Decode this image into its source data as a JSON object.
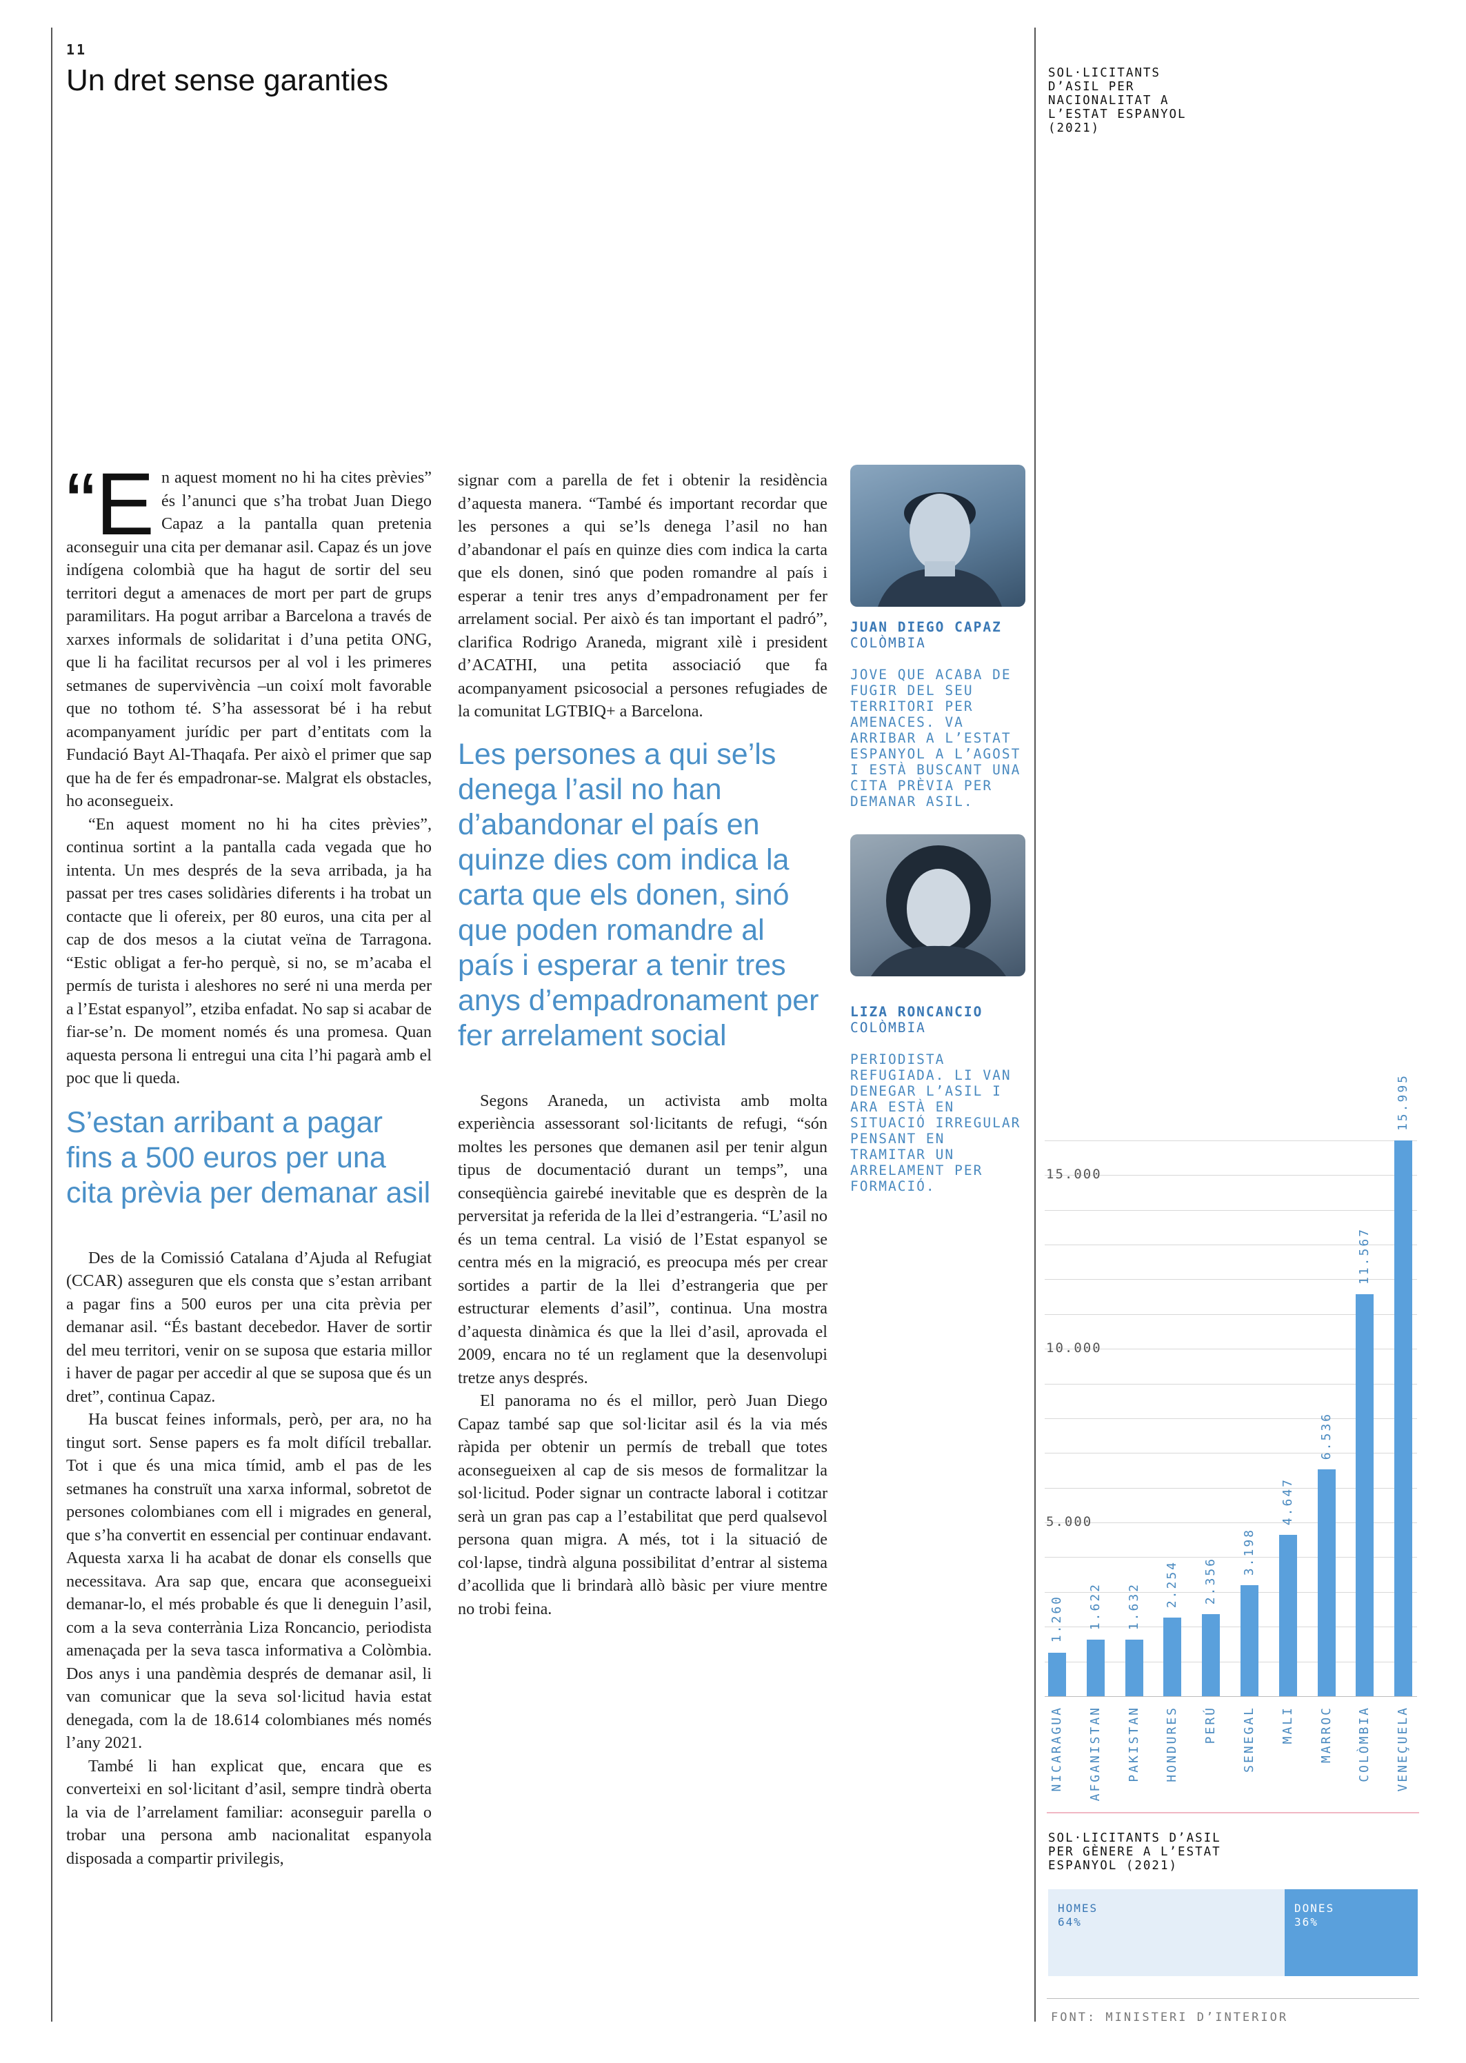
{
  "page": {
    "number": "11",
    "title": "Un dret sense garanties"
  },
  "column1": {
    "drop_quote": "“",
    "drop_letter": "E",
    "p1_rest": "n aquest moment no hi ha cites prèvies” és l’anunci que s’ha trobat Juan Diego Capaz a la pantalla quan pretenia aconseguir una cita per demanar asil. Capaz és un jove indígena colombià que ha hagut de sortir del seu territori degut a amenaces de mort per part de grups paramilitars. Ha pogut arribar a Barcelona a través de xarxes informals de solidaritat i d’una petita ONG, que li ha facilitat recursos per al vol i les primeres setmanes de supervivència –un coixí molt favorable que no tothom té. S’ha assessorat bé i ha rebut acompanyament jurídic per part d’entitats com la Fundació Bayt Al-Thaqafa. Per això el primer que sap que ha de fer és empadronar-se. Malgrat els obstacles, ho aconsegueix.",
    "p2": "“En aquest moment no hi ha cites prèvies”, continua sortint a la pantalla cada vegada que ho intenta. Un mes després de la seva arribada, ja ha passat per tres cases solidàries diferents i ha trobat un contacte que li ofereix, per 80 euros, una cita per al cap de dos mesos a la ciutat veïna de Tarragona. “Estic obligat a fer-ho perquè, si no, se m’acaba el permís de turista i aleshores no seré ni una merda per a l’Estat espanyol”, etziba enfadat. No sap si acabar de fiar-se’n. De moment només és una promesa. Quan aquesta persona li entregui una cita l’hi pagarà amb el poc que li queda.",
    "pull_quote": "S’estan arribant a pagar fins a 500 euros per una cita prèvia per demanar asil",
    "p3": "Des de la Comissió Catalana d’Ajuda al Refugiat (CCAR) asseguren que els consta que s’estan arribant a pagar fins a 500 euros per una cita prèvia per demanar asil. “És bastant decebedor. Haver de sortir del meu territori, venir on se suposa que estaria millor i haver de pagar per accedir al que se suposa que és un dret”, continua Capaz.",
    "p4": "Ha buscat feines informals, però, per ara, no ha tingut sort. Sense papers es fa molt difícil treballar. Tot i que és una mica tímid, amb el pas de les setmanes ha construït una xarxa informal, sobretot de persones colombianes com ell i migrades en general, que s’ha convertit en essencial per continuar endavant. Aquesta xarxa li ha acabat de donar els consells que necessitava. Ara sap que, encara que aconsegueixi demanar-lo, el més probable és que li deneguin l’asil, com a la seva conterrània Liza Roncancio, periodista amenaçada per la seva tasca informativa a Colòmbia. Dos anys i una pandèmia després de demanar asil, li van comunicar que la seva sol·licitud havia estat denegada, com la de 18.614 colombianes més només l’any 2021.",
    "p5": "També li han explicat que, encara que es converteixi en sol·licitant d’asil, sempre tindrà oberta la via de l’arrelament familiar: aconseguir parella o trobar una persona amb nacionalitat espanyola disposada a compartir privilegis,"
  },
  "column2": {
    "p1": "signar com a parella de fet i obtenir la residència d’aquesta manera. “També és important recordar que les persones a qui se’ls denega l’asil no han d’abandonar el país en quinze dies com indica la carta que els donen, sinó que poden romandre al país i esperar a tenir tres anys d’empadronament per fer arrelament social. Per això és tan important el padró”, clarifica Rodrigo Araneda, migrant xilè i president d’ACATHI, una petita associació que fa acompanyament psicosocial a persones refugiades de la comunitat LGTBIQ+ a Barcelona.",
    "pull_quote": "Les persones a qui se’ls denega l’asil no han d’abandonar el país en quinze dies com indica la carta que els donen, sinó que poden romandre al país i esperar a tenir tres anys d’empadronament per fer arrelament social",
    "p2": "Segons Araneda, un activista amb molta experiència assessorant sol·licitants de refugi, “són moltes les persones que demanen asil per tenir algun tipus de documentació durant un temps”, una conseqüència gairebé inevitable que es desprèn de la perversitat ja referida de la llei d’estrangeria. “L’asil no és un tema central. La visió de l’Estat espanyol se centra més en la migració, es preocupa més per crear sortides a partir de la llei d’estrangeria que per estructurar elements d’asil”, continua. Una mostra d’aquesta dinàmica és que la llei d’asil, aprovada el 2009, encara no té un reglament que la desenvolupi tretze anys després.",
    "p3": "El panorama no és el millor, però Juan Diego Capaz també sap que sol·licitar asil és la via més ràpida per obtenir un permís de treball que totes aconsegueixen al cap de sis mesos de formalitzar la sol·licitud. Poder signar un contracte laboral i cotitzar serà un gran pas cap a l’estabilitat que perd qualsevol persona quan migra. A més, tot i la situació de col·lapse, tindrà alguna possibilitat d’entrar al sistema d’acollida que li brindarà allò bàsic per viure mentre no trobi feina."
  },
  "profiles": [
    {
      "name": "JUAN DIEGO CAPAZ",
      "country": "COLÒMBIA",
      "description": "JOVE QUE ACABA DE FUGIR DEL SEU TERRITORI PER AMENACES. VA ARRIBAR A L’ESTAT ESPANYOL A L’AGOST I ESTÀ BUSCANT UNA CITA PRÈVIA PER DEMANAR ASIL."
    },
    {
      "name": "LIZA RONCANCIO",
      "country": "COLÒMBIA",
      "description": "PERIODISTA REFUGIADA. LI VAN DENEGAR L’ASIL I ARA ESTÀ EN SITUACIÓ IRREGULAR PENSANT EN TRAMITAR UN ARRELAMENT PER FORMACIÓ."
    }
  ],
  "chart_data": [
    {
      "type": "bar",
      "title": "SOL·LICITANTS D’ASIL PER NACIONALITAT A L’ESTAT ESPANYOL (2021)",
      "categories": [
        "NICARAGUA",
        "AFGANISTAN",
        "PAKISTAN",
        "HONDURES",
        "PERÚ",
        "SENEGAL",
        "MALI",
        "MARROC",
        "COLÒMBIA",
        "VENEÇUELA"
      ],
      "values": [
        1260,
        1622,
        1632,
        2254,
        2356,
        3198,
        4647,
        6536,
        11567,
        15995
      ],
      "value_labels": [
        "1.260",
        "1.622",
        "1.632",
        "2.254",
        "2.356",
        "3.198",
        "4.647",
        "6.536",
        "11.567",
        "15.995"
      ],
      "yticks": [
        5000,
        10000,
        15000
      ],
      "ytick_labels": [
        "5.000",
        "10.000",
        "15.000"
      ],
      "ylim": [
        0,
        16500
      ],
      "color": "#5aa0dc",
      "grid": true
    },
    {
      "type": "bar",
      "title": "SOL·LICITANTS D’ASIL PER GÈNERE A L’ESTAT ESPANYOL (2021)",
      "categories": [
        "HOMES",
        "DONES"
      ],
      "values": [
        64,
        36
      ],
      "value_labels": [
        "64%",
        "36%"
      ],
      "colors": [
        "#e4eef8",
        "#5aa0dc"
      ]
    }
  ],
  "source": "FONT: MINISTERI D’INTERIOR"
}
